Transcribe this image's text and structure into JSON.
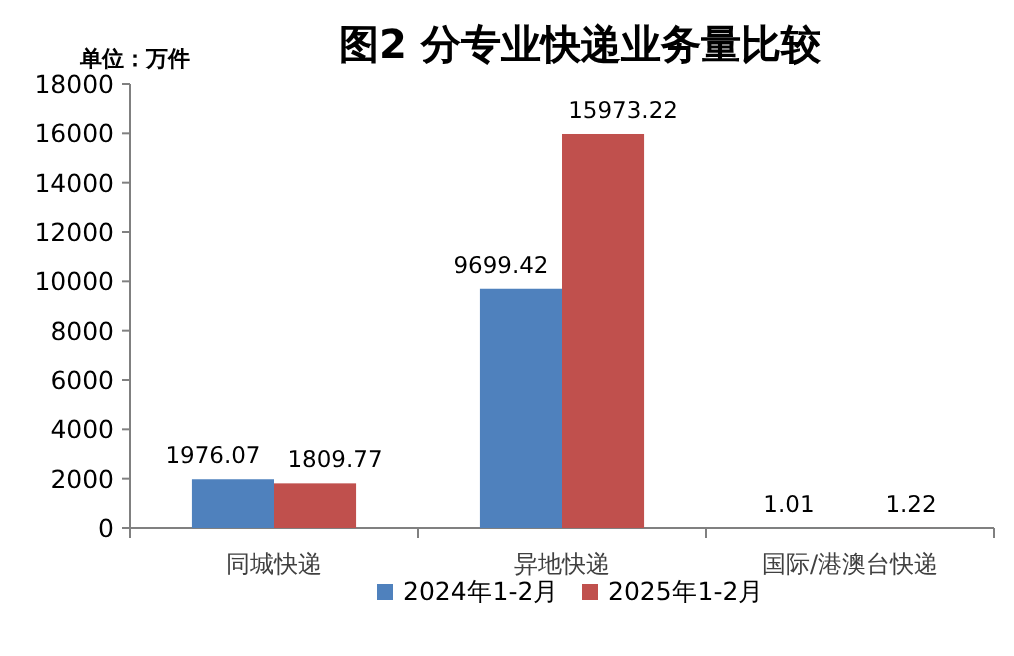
{
  "chart_data": {
    "type": "bar",
    "title": "图2 分专业快递业务量比较",
    "ylabel": "单位：万件",
    "categories": [
      "同城快递",
      "异地快递",
      "国际/港澳台快递"
    ],
    "series": [
      {
        "name": "2024年1-2月",
        "color": "#4f81bd",
        "values": [
          1976.07,
          9699.42,
          1.01
        ]
      },
      {
        "name": "2025年1-2月",
        "color": "#c0504d",
        "values": [
          1809.77,
          15973.22,
          1.22
        ]
      }
    ],
    "ylim": [
      0,
      18000
    ],
    "yticks": [
      0,
      2000,
      4000,
      6000,
      8000,
      10000,
      12000,
      14000,
      16000,
      18000
    ],
    "data_labels": true,
    "legend": "bottom",
    "grid": false
  }
}
